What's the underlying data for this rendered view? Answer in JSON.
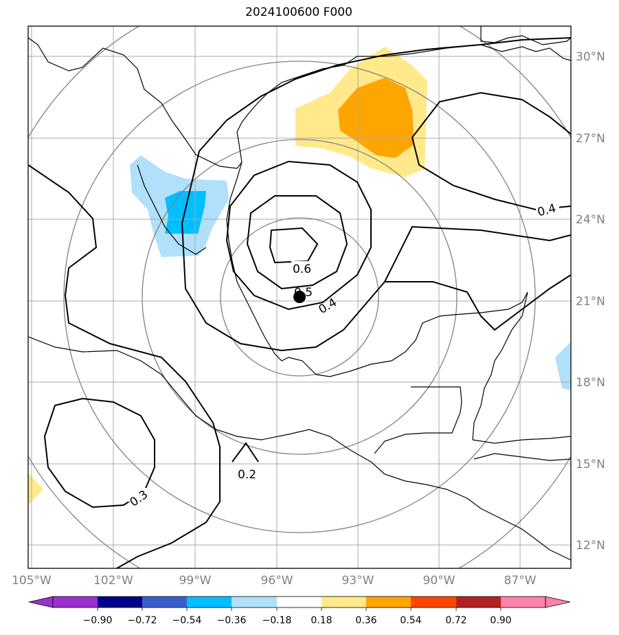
{
  "title": "2024100600 F000",
  "lon_labels": [
    "105°W",
    "102°W",
    "99°W",
    "96°W",
    "93°W",
    "90°W",
    "87°W"
  ],
  "lat_labels": [
    "30°N",
    "27°N",
    "24°N",
    "21°N",
    "18°N",
    "15°N",
    "12°N"
  ],
  "colorbar": {
    "tick_labels": [
      "−0.90",
      "−0.72",
      "−0.54",
      "−0.36",
      "−0.18",
      "0.18",
      "0.36",
      "0.54",
      "0.72",
      "0.90"
    ],
    "colors": [
      "#9932cc",
      "#00008b",
      "#3a5fcd",
      "#00bfff",
      "#b0e0fa",
      "#ffffff",
      "#ffe98a",
      "#ffa500",
      "#ff4500",
      "#b22222",
      "#ff82ab"
    ]
  },
  "contour_labels": [
    "0.6",
    "0.5",
    "0.4",
    "0.4",
    "0.3",
    "0.2"
  ],
  "fill_colors": {
    "light_yellow": "#ffe98a",
    "orange": "#ffa500",
    "light_blue": "#b0e0fa",
    "cyan": "#00bfff"
  },
  "line_colors": {
    "contour": "#000000",
    "coast": "#000000",
    "grid": "#a0a0a0",
    "ring": "#808080"
  }
}
